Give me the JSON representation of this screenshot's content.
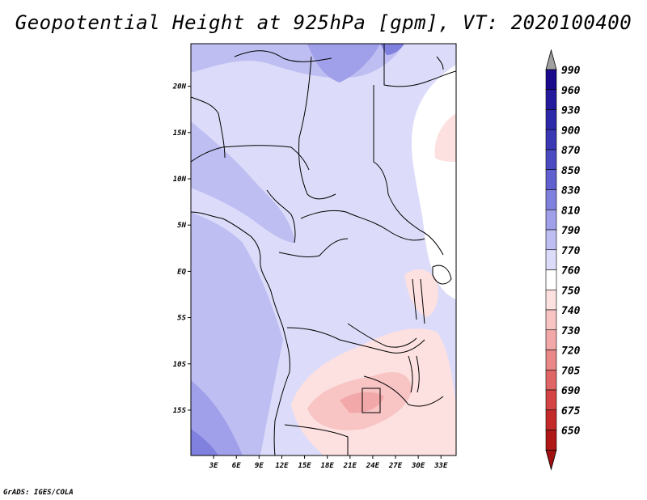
{
  "title": "Geopotential Height at 925hPa [gpm], VT: 2020100400",
  "credit": "GrADS: IGES/COLA",
  "map": {
    "lat_ticks": [
      {
        "label": "20N",
        "lat": 20
      },
      {
        "label": "15N",
        "lat": 15
      },
      {
        "label": "10N",
        "lat": 10
      },
      {
        "label": "5N",
        "lat": 5
      },
      {
        "label": "EQ",
        "lat": 0
      },
      {
        "label": "5S",
        "lat": -5
      },
      {
        "label": "10S",
        "lat": -10
      },
      {
        "label": "15S",
        "lat": -15
      }
    ],
    "lon_ticks": [
      {
        "label": "3E",
        "lon": 3
      },
      {
        "label": "6E",
        "lon": 6
      },
      {
        "label": "9E",
        "lon": 9
      },
      {
        "label": "12E",
        "lon": 12
      },
      {
        "label": "15E",
        "lon": 15
      },
      {
        "label": "18E",
        "lon": 18
      },
      {
        "label": "21E",
        "lon": 21
      },
      {
        "label": "24E",
        "lon": 24
      },
      {
        "label": "27E",
        "lon": 27
      },
      {
        "label": "30E",
        "lon": 30
      },
      {
        "label": "33E",
        "lon": 33
      }
    ]
  },
  "colorbar": {
    "levels": [
      {
        "label": "990",
        "color": "#1a0a8c"
      },
      {
        "label": "960",
        "color": "#241a9c"
      },
      {
        "label": "930",
        "color": "#2d28a8"
      },
      {
        "label": "900",
        "color": "#3a38b4"
      },
      {
        "label": "870",
        "color": "#4a4ac2"
      },
      {
        "label": "850",
        "color": "#6060d0"
      },
      {
        "label": "830",
        "color": "#8080de"
      },
      {
        "label": "810",
        "color": "#a0a0ea"
      },
      {
        "label": "790",
        "color": "#bebef2"
      },
      {
        "label": "770",
        "color": "#dcdcfa"
      },
      {
        "label": "760",
        "color": "#ffffff"
      },
      {
        "label": "750",
        "color": "#fde0e0"
      },
      {
        "label": "740",
        "color": "#f8c4c4"
      },
      {
        "label": "730",
        "color": "#f2a8a8"
      },
      {
        "label": "720",
        "color": "#ea8888"
      },
      {
        "label": "705",
        "color": "#e06666"
      },
      {
        "label": "690",
        "color": "#d44444"
      },
      {
        "label": "675",
        "color": "#c42a2a"
      },
      {
        "label": "650",
        "color": "#b01818"
      }
    ],
    "top_triangle_color": "#a0a0a0",
    "bottom_triangle_color": "#a01010"
  }
}
